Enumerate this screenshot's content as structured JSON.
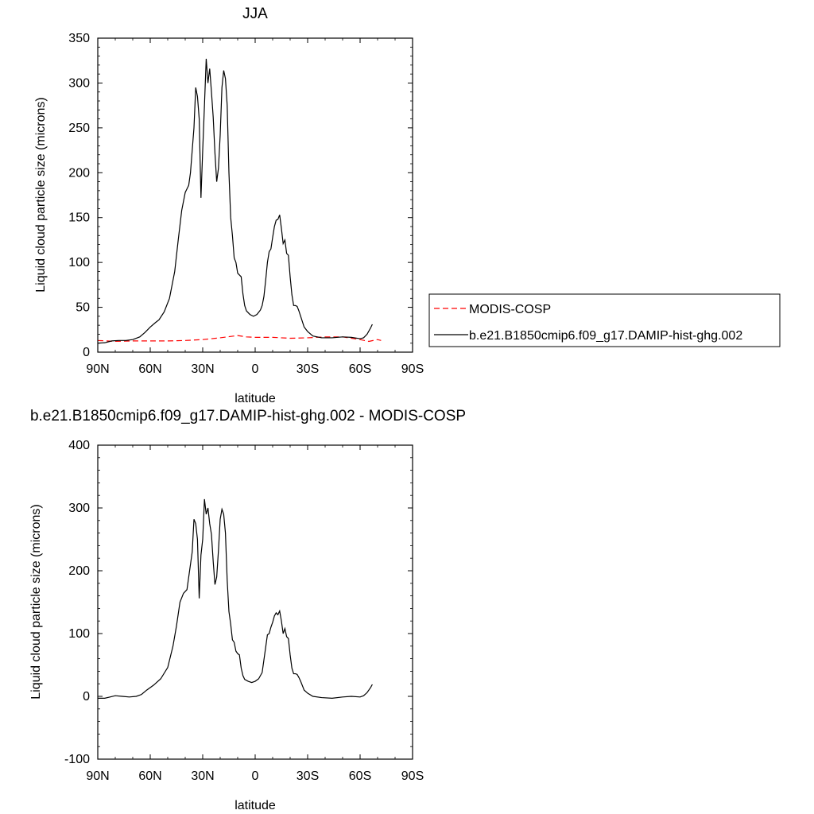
{
  "chart_data": [
    {
      "type": "line",
      "title": "JJA",
      "xlabel": "latitude",
      "ylabel": "Liquid cloud particle size (microns)",
      "xlim": [
        90,
        -90
      ],
      "ylim": [
        0,
        350
      ],
      "x_ticks": [
        {
          "value": 90,
          "label": "90N"
        },
        {
          "value": 60,
          "label": "60N"
        },
        {
          "value": 30,
          "label": "30N"
        },
        {
          "value": 0,
          "label": "0"
        },
        {
          "value": -30,
          "label": "30S"
        },
        {
          "value": -60,
          "label": "60S"
        },
        {
          "value": -90,
          "label": "90S"
        }
      ],
      "y_ticks": [
        {
          "value": 0,
          "label": "0"
        },
        {
          "value": 50,
          "label": "50"
        },
        {
          "value": 100,
          "label": "100"
        },
        {
          "value": 150,
          "label": "150"
        },
        {
          "value": 200,
          "label": "200"
        },
        {
          "value": 250,
          "label": "250"
        },
        {
          "value": 300,
          "label": "300"
        },
        {
          "value": 350,
          "label": "350"
        }
      ],
      "grid": false,
      "legend_position": "right",
      "series": [
        {
          "name": "MODIS-COSP",
          "color": "#ff0000",
          "dash": "dashed",
          "points": [
            [
              90,
              13
            ],
            [
              80,
              12
            ],
            [
              70,
              12.5
            ],
            [
              60,
              12.5
            ],
            [
              50,
              12.5
            ],
            [
              40,
              13
            ],
            [
              30,
              14
            ],
            [
              20,
              16
            ],
            [
              10,
              18.5
            ],
            [
              5,
              17
            ],
            [
              0,
              16.5
            ],
            [
              -10,
              16.5
            ],
            [
              -20,
              15.5
            ],
            [
              -30,
              16
            ],
            [
              -40,
              17
            ],
            [
              -50,
              17
            ],
            [
              -60,
              14
            ],
            [
              -65,
              12
            ],
            [
              -70,
              14
            ],
            [
              -72,
              13
            ]
          ]
        },
        {
          "name": "b.e21.B1850cmip6.f09_g17.DAMIP-hist-ghg.002",
          "color": "#000000",
          "dash": "solid",
          "points": [
            [
              90,
              10
            ],
            [
              86,
              10.5
            ],
            [
              82,
              12.5
            ],
            [
              78,
              13
            ],
            [
              74,
              13
            ],
            [
              70,
              14
            ],
            [
              66,
              17
            ],
            [
              63,
              22
            ],
            [
              60,
              28
            ],
            [
              57,
              33
            ],
            [
              55,
              36
            ],
            [
              52,
              45
            ],
            [
              49,
              60
            ],
            [
              46,
              90
            ],
            [
              44,
              125
            ],
            [
              42,
              158
            ],
            [
              40,
              178
            ],
            [
              38,
              186
            ],
            [
              37,
              200
            ],
            [
              36,
              225
            ],
            [
              35,
              250
            ],
            [
              34,
              295
            ],
            [
              33,
              285
            ],
            [
              32,
              260
            ],
            [
              31,
              172
            ],
            [
              30,
              225
            ],
            [
              29,
              275
            ],
            [
              28,
              327
            ],
            [
              27,
              300
            ],
            [
              26,
              316
            ],
            [
              25,
              290
            ],
            [
              24,
              262
            ],
            [
              23,
              222
            ],
            [
              22,
              190
            ],
            [
              21,
              205
            ],
            [
              20,
              242
            ],
            [
              19,
              295
            ],
            [
              18,
              314
            ],
            [
              17,
              305
            ],
            [
              16,
              275
            ],
            [
              15,
              200
            ],
            [
              14,
              150
            ],
            [
              13,
              130
            ],
            [
              12,
              105
            ],
            [
              11,
              100
            ],
            [
              10,
              88
            ],
            [
              9,
              86
            ],
            [
              8,
              84
            ],
            [
              7,
              65
            ],
            [
              6,
              52
            ],
            [
              5,
              46
            ],
            [
              3,
              42
            ],
            [
              1,
              40
            ],
            [
              -1,
              42
            ],
            [
              -3,
              47
            ],
            [
              -4,
              52
            ],
            [
              -5,
              62
            ],
            [
              -6,
              80
            ],
            [
              -7,
              100
            ],
            [
              -8,
              112
            ],
            [
              -9,
              115
            ],
            [
              -10,
              128
            ],
            [
              -11,
              140
            ],
            [
              -12,
              147
            ],
            [
              -13,
              148
            ],
            [
              -14,
              153
            ],
            [
              -15,
              138
            ],
            [
              -16,
              121
            ],
            [
              -17,
              125
            ],
            [
              -18,
              110
            ],
            [
              -19,
              108
            ],
            [
              -20,
              84
            ],
            [
              -21,
              64
            ],
            [
              -22,
              52
            ],
            [
              -23,
              52
            ],
            [
              -24,
              51
            ],
            [
              -25,
              46
            ],
            [
              -26,
              40
            ],
            [
              -28,
              28
            ],
            [
              -30,
              23
            ],
            [
              -33,
              18
            ],
            [
              -38,
              16
            ],
            [
              -44,
              16
            ],
            [
              -50,
              17
            ],
            [
              -55,
              16.5
            ],
            [
              -60,
              15
            ],
            [
              -62,
              16
            ],
            [
              -64,
              20
            ],
            [
              -66,
              27
            ],
            [
              -67,
              31
            ]
          ]
        }
      ]
    },
    {
      "type": "line",
      "title": "b.e21.B1850cmip6.f09_g17.DAMIP-hist-ghg.002 - MODIS-COSP",
      "xlabel": "latitude",
      "ylabel": "Liquid cloud particle size (microns)",
      "xlim": [
        90,
        -90
      ],
      "ylim": [
        -100,
        400
      ],
      "x_ticks": [
        {
          "value": 90,
          "label": "90N"
        },
        {
          "value": 60,
          "label": "60N"
        },
        {
          "value": 30,
          "label": "30N"
        },
        {
          "value": 0,
          "label": "0"
        },
        {
          "value": -30,
          "label": "30S"
        },
        {
          "value": -60,
          "label": "60S"
        },
        {
          "value": -90,
          "label": "90S"
        }
      ],
      "y_ticks": [
        {
          "value": -100,
          "label": "-100"
        },
        {
          "value": 0,
          "label": "0"
        },
        {
          "value": 100,
          "label": "100"
        },
        {
          "value": 200,
          "label": "200"
        },
        {
          "value": 300,
          "label": "300"
        },
        {
          "value": 400,
          "label": "400"
        }
      ],
      "grid": false,
      "series": [
        {
          "color": "#000000",
          "dash": "solid",
          "points": [
            [
              90,
              -3
            ],
            [
              86,
              -3
            ],
            [
              83,
              -1
            ],
            [
              80,
              1
            ],
            [
              76,
              0
            ],
            [
              72,
              -1
            ],
            [
              68,
              0
            ],
            [
              65,
              3
            ],
            [
              62,
              10
            ],
            [
              58,
              18
            ],
            [
              54,
              28
            ],
            [
              50,
              46
            ],
            [
              47,
              80
            ],
            [
              45,
              112
            ],
            [
              43,
              150
            ],
            [
              41,
              164
            ],
            [
              39,
              170
            ],
            [
              38,
              190
            ],
            [
              36,
              230
            ],
            [
              35,
              282
            ],
            [
              34,
              275
            ],
            [
              33,
              250
            ],
            [
              32,
              156
            ],
            [
              31,
              225
            ],
            [
              30,
              250
            ],
            [
              29,
              314
            ],
            [
              28,
              290
            ],
            [
              27,
              300
            ],
            [
              26,
              275
            ],
            [
              25,
              258
            ],
            [
              24,
              215
            ],
            [
              23,
              178
            ],
            [
              22,
              190
            ],
            [
              21,
              232
            ],
            [
              20,
              282
            ],
            [
              19,
              298
            ],
            [
              18,
              290
            ],
            [
              17,
              260
            ],
            [
              16,
              185
            ],
            [
              15,
              135
            ],
            [
              14,
              115
            ],
            [
              13,
              90
            ],
            [
              12,
              86
            ],
            [
              11,
              72
            ],
            [
              10,
              68
            ],
            [
              9,
              66
            ],
            [
              8,
              45
            ],
            [
              7,
              33
            ],
            [
              6,
              27
            ],
            [
              4,
              24
            ],
            [
              2,
              22
            ],
            [
              0,
              24
            ],
            [
              -2,
              28
            ],
            [
              -4,
              38
            ],
            [
              -5,
              58
            ],
            [
              -6,
              78
            ],
            [
              -7,
              98
            ],
            [
              -8,
              100
            ],
            [
              -9,
              110
            ],
            [
              -10,
              118
            ],
            [
              -11,
              128
            ],
            [
              -12,
              133
            ],
            [
              -13,
              130
            ],
            [
              -14,
              136
            ],
            [
              -15,
              120
            ],
            [
              -16,
              100
            ],
            [
              -17,
              108
            ],
            [
              -18,
              95
            ],
            [
              -19,
              92
            ],
            [
              -20,
              66
            ],
            [
              -21,
              45
            ],
            [
              -22,
              36
            ],
            [
              -23,
              36
            ],
            [
              -24,
              35
            ],
            [
              -25,
              30
            ],
            [
              -26,
              24
            ],
            [
              -28,
              10
            ],
            [
              -30,
              5
            ],
            [
              -33,
              0
            ],
            [
              -38,
              -2
            ],
            [
              -44,
              -3
            ],
            [
              -50,
              -1
            ],
            [
              -55,
              0
            ],
            [
              -60,
              -1
            ],
            [
              -62,
              1
            ],
            [
              -64,
              6
            ],
            [
              -66,
              14
            ],
            [
              -67,
              19
            ]
          ]
        }
      ]
    }
  ]
}
